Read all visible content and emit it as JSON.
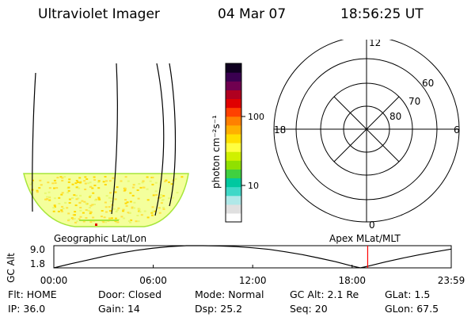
{
  "header": {
    "instrument": "Ultraviolet Imager",
    "date": "04 Mar 07",
    "time": "18:56:25 UT"
  },
  "colorbar": {
    "label": "photon cm⁻²s⁻¹",
    "ticks": [
      {
        "label": "100",
        "value": 100
      },
      {
        "label": "10",
        "value": 10
      }
    ],
    "colors": [
      "#ffffff",
      "#e0e0e0",
      "#b0e8e8",
      "#40d8c8",
      "#00c8a0",
      "#40d040",
      "#90e000",
      "#d0f000",
      "#ffff40",
      "#ffe000",
      "#ffb000",
      "#ff8000",
      "#ff4000",
      "#e00000",
      "#b00020",
      "#700050",
      "#3a0050",
      "#100020"
    ]
  },
  "image_panel": {
    "caption": "Geographic Lat/Lon",
    "fill_color": "#f4ff9c",
    "edge_color": "#a6e63a"
  },
  "polar_plot": {
    "caption": "Apex MLat/MLT",
    "mlt_labels": [
      {
        "label": "12",
        "position": "top"
      },
      {
        "label": "6",
        "position": "right"
      },
      {
        "label": "0",
        "position": "bottom"
      },
      {
        "label": "18",
        "position": "left"
      }
    ],
    "lat_labels": [
      "60",
      "70",
      "80"
    ]
  },
  "chart_data": {
    "type": "line",
    "title": "",
    "xlabel": "",
    "ylabel": "GC Alt",
    "ylim": [
      1.8,
      9.0
    ],
    "xlim": [
      0,
      23.983
    ],
    "yticks": [
      "9.0",
      "1.8"
    ],
    "xticks": [
      "00:00",
      "06:00",
      "12:00",
      "18:00",
      "23:59"
    ],
    "xtick_values": [
      0,
      6,
      12,
      18,
      23.983
    ],
    "series": [
      {
        "x": [
          0,
          1,
          2,
          3,
          4,
          5,
          6,
          7,
          8,
          9,
          10,
          11,
          12,
          13,
          14,
          15,
          16,
          17,
          18,
          18.5,
          19,
          20,
          21,
          22,
          23,
          23.983
        ],
        "values": [
          1.8,
          3.1,
          4.3,
          5.5,
          6.6,
          7.5,
          8.2,
          8.7,
          9.0,
          9.0,
          8.9,
          8.7,
          8.3,
          7.8,
          7.0,
          6.1,
          5.0,
          3.8,
          2.4,
          1.8,
          2.4,
          3.7,
          4.9,
          6.0,
          7.0,
          7.9
        ]
      }
    ],
    "marker_time": 18.94,
    "marker_color": "#ff0000"
  },
  "info": {
    "flt_label": "Flt:",
    "flt_value": "HOME",
    "door_label": "Door:",
    "door_value": "Closed",
    "mode_label": "Mode:",
    "mode_value": "Normal",
    "gcalt_label": "GC Alt:",
    "gcalt_value": "2.1 Re",
    "glat_label": "GLat:",
    "glat_value": "1.5",
    "ip_label": "IP:",
    "ip_value": "36.0",
    "gain_label": "Gain:",
    "gain_value": "14",
    "dsp_label": "Dsp:",
    "dsp_value": "25.2",
    "seq_label": "Seq:",
    "seq_value": "20",
    "glon_label": "GLon:",
    "glon_value": "67.5"
  }
}
